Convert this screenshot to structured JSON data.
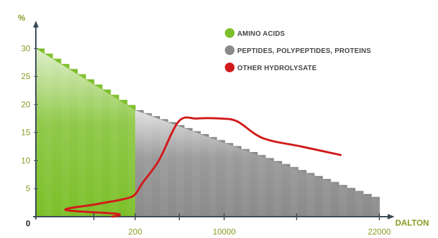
{
  "chart_data": {
    "type": "area",
    "y_unit_label": "%",
    "x_unit_label": "DALTON",
    "y_ticks": [
      {
        "label": "0",
        "value": 0
      },
      {
        "label": "5",
        "value": 5
      },
      {
        "label": "10",
        "value": 10
      },
      {
        "label": "15",
        "value": 15
      },
      {
        "label": "20",
        "value": 20
      },
      {
        "label": "25",
        "value": 25
      },
      {
        "label": "30",
        "value": 30
      }
    ],
    "x_ticks": [
      {
        "label": "200",
        "value": 200
      },
      {
        "label": "10000",
        "value": 10000
      },
      {
        "label": "22000",
        "value": 22000
      }
    ],
    "ylim": [
      0,
      33
    ],
    "series": [
      {
        "name": "AMINO ACIDS",
        "color": "#7cbf2a",
        "type": "area",
        "x": [
          0,
          200
        ],
        "y": [
          30,
          19
        ]
      },
      {
        "name": "PEPTIDES, POLYPEPTIDES, PROTEINS",
        "color": "#8a8a8a",
        "type": "area",
        "x": [
          200,
          22000
        ],
        "y": [
          19,
          3
        ]
      },
      {
        "name": "OTHER HYDROLYSATE",
        "color": "#d11a1a",
        "type": "line",
        "x": [
          -200,
          0,
          60,
          120,
          180,
          200,
          1000,
          2800,
          5000,
          7000,
          9500,
          11000,
          13000,
          16000,
          19000
        ],
        "y": [
          0,
          0.5,
          1.2,
          2.2,
          3.2,
          4,
          6,
          10,
          17,
          17.5,
          17.5,
          17,
          14,
          12.5,
          11
        ]
      }
    ],
    "legend_position": "top-right",
    "grid": false
  }
}
